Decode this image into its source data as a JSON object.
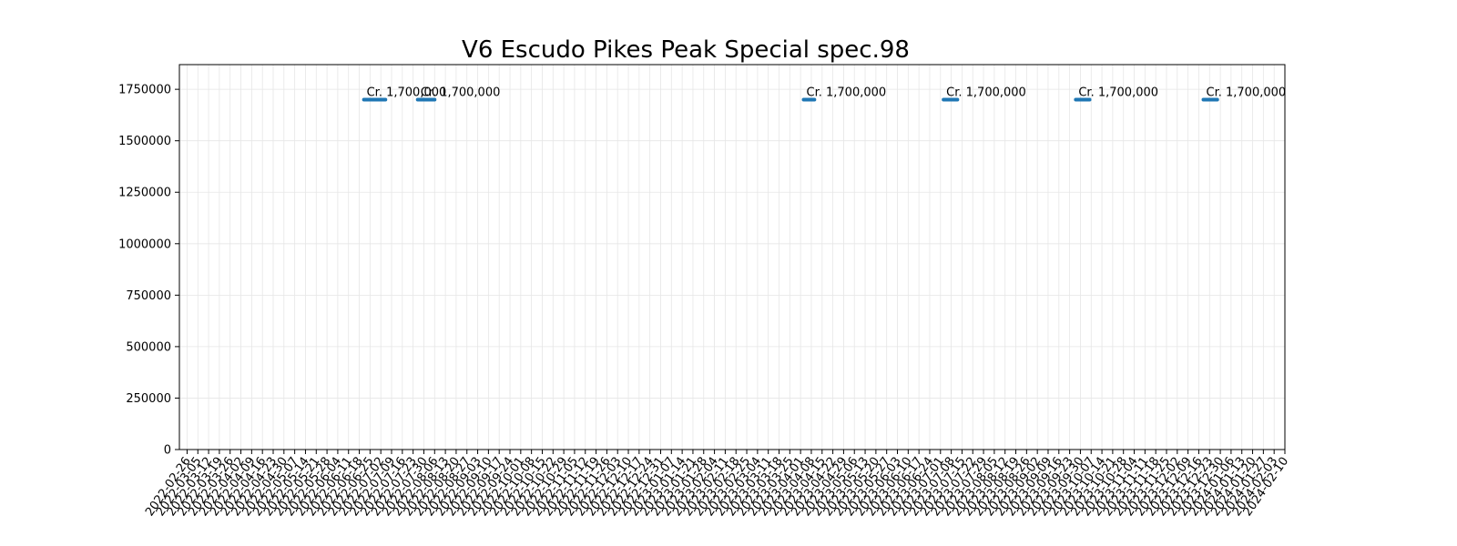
{
  "chart_data": {
    "type": "line",
    "title": "V6 Escudo Pikes Peak Special spec.98",
    "xlabel": "",
    "ylabel": "",
    "ylim": [
      0,
      1870000
    ],
    "yticks": [
      0,
      250000,
      500000,
      750000,
      1000000,
      1250000,
      1500000,
      1750000
    ],
    "grid": true,
    "x_tick_step_days": 7,
    "x_tick_labels": [
      "2022-02-26",
      "2022-03-05",
      "2022-03-12",
      "2022-03-19",
      "2022-03-26",
      "2022-04-02",
      "2022-04-09",
      "2022-04-16",
      "2022-04-23",
      "2022-04-30",
      "2022-05-07",
      "2022-05-14",
      "2022-05-21",
      "2022-05-28",
      "2022-06-04",
      "2022-06-11",
      "2022-06-18",
      "2022-06-25",
      "2022-07-02",
      "2022-07-09",
      "2022-07-16",
      "2022-07-23",
      "2022-07-30",
      "2022-08-06",
      "2022-08-13",
      "2022-08-20",
      "2022-08-27",
      "2022-09-03",
      "2022-09-10",
      "2022-09-17",
      "2022-09-24",
      "2022-10-01",
      "2022-10-08",
      "2022-10-15",
      "2022-10-22",
      "2022-10-29",
      "2022-11-05",
      "2022-11-12",
      "2022-11-19",
      "2022-11-26",
      "2022-12-03",
      "2022-12-10",
      "2022-12-17",
      "2022-12-24",
      "2022-12-31",
      "2023-01-07",
      "2023-01-14",
      "2023-01-21",
      "2023-01-28",
      "2023-02-04",
      "2023-02-11",
      "2023-02-18",
      "2023-02-25",
      "2023-03-04",
      "2023-03-11",
      "2023-03-18",
      "2023-03-25",
      "2023-04-01",
      "2023-04-08",
      "2023-04-15",
      "2023-04-22",
      "2023-04-29",
      "2023-05-06",
      "2023-05-13",
      "2023-05-20",
      "2023-05-27",
      "2023-06-03",
      "2023-06-10",
      "2023-06-17",
      "2023-06-24",
      "2023-07-01",
      "2023-07-08",
      "2023-07-15",
      "2023-07-22",
      "2023-07-29",
      "2023-08-05",
      "2023-08-12",
      "2023-08-19",
      "2023-08-26",
      "2023-09-02",
      "2023-09-09",
      "2023-09-16",
      "2023-09-23",
      "2023-09-30",
      "2023-10-07",
      "2023-10-14",
      "2023-10-21",
      "2023-10-28",
      "2023-11-04",
      "2023-11-11",
      "2023-11-18",
      "2023-11-25",
      "2023-12-02",
      "2023-12-09",
      "2023-12-16",
      "2023-12-23",
      "2023-12-30",
      "2024-01-06",
      "2024-01-13",
      "2024-01-20",
      "2024-01-27",
      "2024-02-03",
      "2024-02-10"
    ],
    "series": [
      {
        "color": "#1f77b4",
        "segments": [
          {
            "start": "2022-06-21",
            "end": "2022-07-05",
            "value": 1700000,
            "label": "Cr. 1,700,000"
          },
          {
            "start": "2022-07-26",
            "end": "2022-08-06",
            "value": 1700000,
            "label": "Cr. 1,700,000"
          },
          {
            "start": "2023-04-03",
            "end": "2023-04-10",
            "value": 1700000,
            "label": "Cr. 1,700,000"
          },
          {
            "start": "2023-07-03",
            "end": "2023-07-12",
            "value": 1700000,
            "label": "Cr. 1,700,000"
          },
          {
            "start": "2023-09-27",
            "end": "2023-10-06",
            "value": 1700000,
            "label": "Cr. 1,700,000"
          },
          {
            "start": "2023-12-19",
            "end": "2023-12-28",
            "value": 1700000,
            "label": "Cr. 1,700,000"
          }
        ]
      }
    ]
  }
}
